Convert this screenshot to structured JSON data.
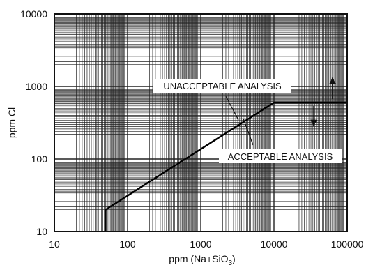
{
  "chart_data": {
    "type": "line",
    "title": "",
    "x_scale": "log",
    "y_scale": "log",
    "xlim": [
      10,
      100000
    ],
    "ylim": [
      10,
      10000
    ],
    "grid": true,
    "x_ticks": [
      "10",
      "100",
      "1000",
      "10000",
      "100000"
    ],
    "y_ticks": [
      "10",
      "100",
      "1000",
      "10000"
    ],
    "xlabel": {
      "main": "ppm (Na+SiO",
      "sub": "3",
      "close": ")"
    },
    "ylabel": "ppm Cl",
    "series": [
      {
        "points": [
          {
            "x": 50,
            "y": 10
          },
          {
            "x": 50,
            "y": 20
          },
          {
            "x": 10000,
            "y": 600
          },
          {
            "x": 100000,
            "y": 600
          }
        ]
      }
    ],
    "annotations": [
      {
        "text": "UNACCEPTABLE ANALYSIS",
        "region": "above line"
      },
      {
        "text": "ACCEPTABLE ANALYSIS",
        "region": "below line"
      }
    ]
  }
}
